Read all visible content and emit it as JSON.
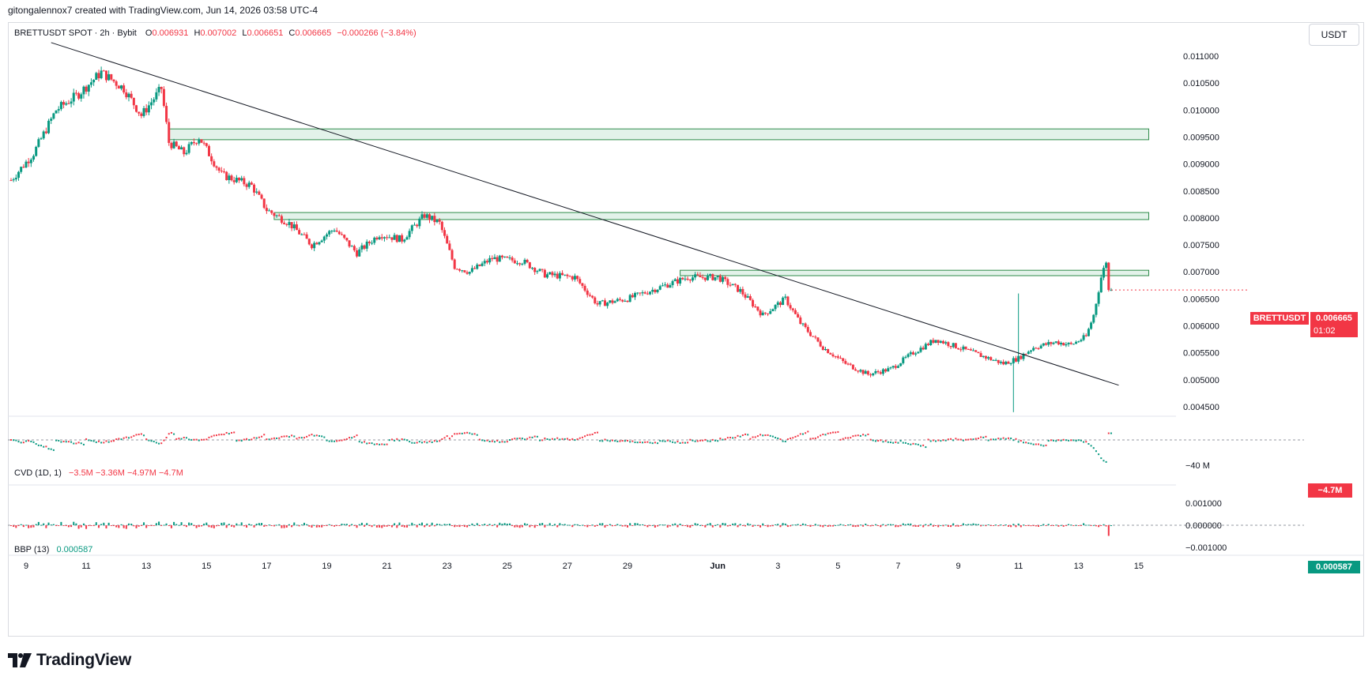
{
  "header": {
    "attribution": "gitongalennox7 created with TradingView.com, Jun 14, 2026 03:58 UTC-4"
  },
  "legend": {
    "symbol_line": "BRETTUSDT SPOT · 2h · Bybit",
    "o_label": "O",
    "o_value": "0.006931",
    "h_label": "H",
    "h_value": "0.007002",
    "l_label": "L",
    "l_value": "0.006651",
    "c_label": "C",
    "c_value": "0.006665",
    "change": "−0.000266 (−3.84%)"
  },
  "cvd_legend": {
    "name": "CVD (1D, 1)",
    "values": "−3.5M  −3.36M  −4.97M  −4.7M"
  },
  "bbp_legend": {
    "name": "BBP (13)",
    "value": "0.000587"
  },
  "currency_button": "USDT",
  "last_price": {
    "symbol": "BRETTUSDT",
    "value": "0.006665",
    "countdown": "01:02"
  },
  "cvd_last": "−4.7M",
  "bbp_last": "0.000587",
  "brand": "TradingView",
  "colors": {
    "up": "#089981",
    "down": "#f23645",
    "zone_fill": "#e3f2ea",
    "zone_stroke": "#2e8b4a",
    "trendline": "#131722"
  },
  "chart_data": [
    {
      "type": "candlestick",
      "title": "BRETTUSDT SPOT · 2h · Bybit",
      "y_axis_ticks": [
        "0.011000",
        "0.010500",
        "0.010000",
        "0.009500",
        "0.009000",
        "0.008500",
        "0.008000",
        "0.007500",
        "0.007000",
        "0.006500",
        "0.006000",
        "0.005500",
        "0.005000",
        "0.004500"
      ],
      "ylim": [
        0.0043,
        0.0114
      ],
      "x_axis_ticks": [
        "9",
        "11",
        "13",
        "15",
        "17",
        "19",
        "21",
        "23",
        "25",
        "27",
        "29",
        "Jun",
        "3",
        "5",
        "7",
        "9",
        "11",
        "13",
        "15"
      ],
      "price_path": [
        {
          "date": "May 8 12:00",
          "price": 0.0087
        },
        {
          "date": "May 9 06:00",
          "price": 0.0092
        },
        {
          "date": "May 10 00:00",
          "price": 0.01
        },
        {
          "date": "May 10 18:00",
          "price": 0.0103
        },
        {
          "date": "May 11 12:00",
          "price": 0.0107
        },
        {
          "date": "May 12 06:00",
          "price": 0.0104
        },
        {
          "date": "May 12 20:00",
          "price": 0.0099
        },
        {
          "date": "May 13 12:00",
          "price": 0.0104
        },
        {
          "date": "May 13 18:00",
          "price": 0.0094
        },
        {
          "date": "May 14 06:00",
          "price": 0.0092
        },
        {
          "date": "May 14 18:00",
          "price": 0.0095
        },
        {
          "date": "May 15 12:00",
          "price": 0.0088
        },
        {
          "date": "May 16 12:00",
          "price": 0.0086
        },
        {
          "date": "May 17 00:00",
          "price": 0.00815
        },
        {
          "date": "May 17 18:00",
          "price": 0.0079
        },
        {
          "date": "May 18 12:00",
          "price": 0.0075
        },
        {
          "date": "May 19 06:00",
          "price": 0.0078
        },
        {
          "date": "May 20 00:00",
          "price": 0.00735
        },
        {
          "date": "May 20 18:00",
          "price": 0.0077
        },
        {
          "date": "May 21 12:00",
          "price": 0.0076
        },
        {
          "date": "May 22 06:00",
          "price": 0.00805
        },
        {
          "date": "May 22 18:00",
          "price": 0.0079
        },
        {
          "date": "May 23 06:00",
          "price": 0.0071
        },
        {
          "date": "May 23 18:00",
          "price": 0.007
        },
        {
          "date": "May 24 12:00",
          "price": 0.00725
        },
        {
          "date": "May 25 12:00",
          "price": 0.0072
        },
        {
          "date": "May 26 06:00",
          "price": 0.00695
        },
        {
          "date": "May 27 06:00",
          "price": 0.0069
        },
        {
          "date": "May 28 00:00",
          "price": 0.0064
        },
        {
          "date": "May 29 00:00",
          "price": 0.0065
        },
        {
          "date": "May 30 00:00",
          "price": 0.0067
        },
        {
          "date": "May 31 00:00",
          "price": 0.0069
        },
        {
          "date": "Jun 1 00:00",
          "price": 0.0069
        },
        {
          "date": "Jun 1 18:00",
          "price": 0.00665
        },
        {
          "date": "Jun 2 12:00",
          "price": 0.0062
        },
        {
          "date": "Jun 3 06:00",
          "price": 0.0065
        },
        {
          "date": "Jun 3 18:00",
          "price": 0.00605
        },
        {
          "date": "Jun 4 12:00",
          "price": 0.0056
        },
        {
          "date": "Jun 5 06:00",
          "price": 0.0053
        },
        {
          "date": "Jun 6 00:00",
          "price": 0.0051
        },
        {
          "date": "Jun 6 18:00",
          "price": 0.0052
        },
        {
          "date": "Jun 7 12:00",
          "price": 0.0055
        },
        {
          "date": "Jun 8 06:00",
          "price": 0.00575
        },
        {
          "date": "Jun 9 00:00",
          "price": 0.0056
        },
        {
          "date": "Jun 9 18:00",
          "price": 0.00545
        },
        {
          "date": "Jun 10 12:00",
          "price": 0.0053
        },
        {
          "date": "Jun 11 00:00",
          "price": 0.0054
        },
        {
          "date": "Jun 11 12:00",
          "price": 0.0056
        },
        {
          "date": "Jun 12 06:00",
          "price": 0.0057
        },
        {
          "date": "Jun 12 18:00",
          "price": 0.00565
        },
        {
          "date": "Jun 13 06:00",
          "price": 0.0058
        },
        {
          "date": "Jun 13 12:00",
          "price": 0.0062
        },
        {
          "date": "Jun 13 18:00",
          "price": 0.0069
        },
        {
          "date": "Jun 13 22:00",
          "price": 0.0072
        },
        {
          "date": "Jun 14 02:00",
          "price": 0.006665
        }
      ],
      "spike_low": {
        "date": "Jun 10 20:00",
        "low": 0.0044
      },
      "spike_high": {
        "date": "Jun 11 00:00",
        "high": 0.0066
      },
      "zones": [
        {
          "from_date": "May 13 18:00",
          "to_date": "Jun 15 08:00",
          "low": 0.00945,
          "high": 0.00965
        },
        {
          "from_date": "May 17 06:00",
          "to_date": "Jun 15 08:00",
          "low": 0.00797,
          "high": 0.0081
        },
        {
          "from_date": "May 30 18:00",
          "to_date": "Jun 15 08:00",
          "low": 0.00693,
          "high": 0.00703
        }
      ],
      "trendline": [
        {
          "date": "May 9 20:00",
          "price": 0.01125
        },
        {
          "date": "Jun 14 08:00",
          "price": 0.0049
        }
      ]
    },
    {
      "type": "line",
      "title": "CVD (1D, 1)",
      "y_axis_ticks": [
        "−40 M"
      ],
      "last_value": "−4.7M"
    },
    {
      "type": "bar",
      "title": "BBP (13)",
      "y_axis_ticks": [
        "0.001000",
        "0.000000",
        "−0.001000"
      ],
      "ylim": [
        -0.0013,
        0.0011
      ],
      "last_value": 0.000587
    }
  ]
}
